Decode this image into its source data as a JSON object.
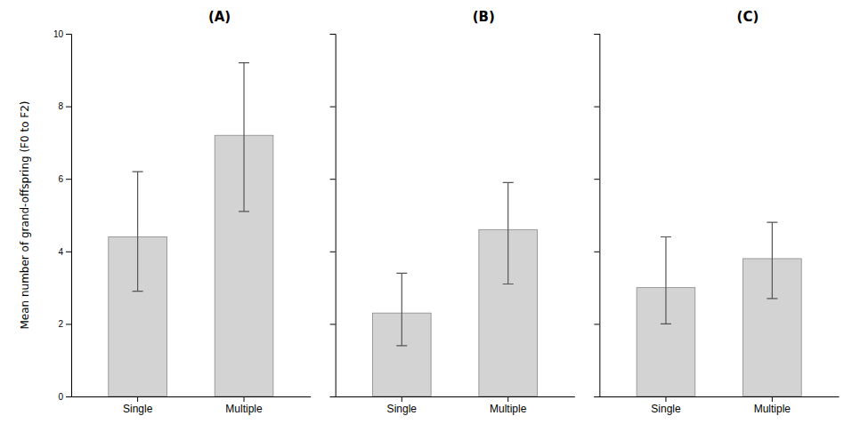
{
  "chart_data": [
    {
      "type": "bar",
      "title": "(A)",
      "ylabel": "Mean number of grand-offspring (F0 to F2)",
      "categories": [
        "Single",
        "Multiple"
      ],
      "values": [
        4.4,
        7.2
      ],
      "error_low": [
        2.9,
        5.1
      ],
      "error_high": [
        6.2,
        9.2
      ],
      "color": "#d3d3d3",
      "ylim": [
        0,
        10
      ],
      "yticks": [
        0,
        2,
        4,
        6,
        8,
        10
      ],
      "grid": false
    },
    {
      "type": "bar",
      "title": "(B)",
      "categories": [
        "Single",
        "Multiple"
      ],
      "values": [
        2.3,
        4.6
      ],
      "error_low": [
        1.4,
        3.1
      ],
      "error_high": [
        3.4,
        5.9
      ],
      "color": "#d3d3d3",
      "ylim": [
        0,
        10
      ],
      "yticks": [
        0,
        2,
        4,
        6,
        8,
        10
      ],
      "grid": false,
      "tick_labels": "x"
    },
    {
      "type": "bar",
      "title": "(C)",
      "categories": [
        "Single",
        "Multiple"
      ],
      "values": [
        3.0,
        3.8
      ],
      "error_low": [
        2.0,
        2.7
      ],
      "error_high": [
        4.4,
        4.8
      ],
      "color": "#d3d3d3",
      "ylim": [
        0,
        10
      ],
      "yticks": [
        0,
        2,
        4,
        6,
        8,
        10
      ],
      "grid": false,
      "tick_labels": "x"
    }
  ]
}
